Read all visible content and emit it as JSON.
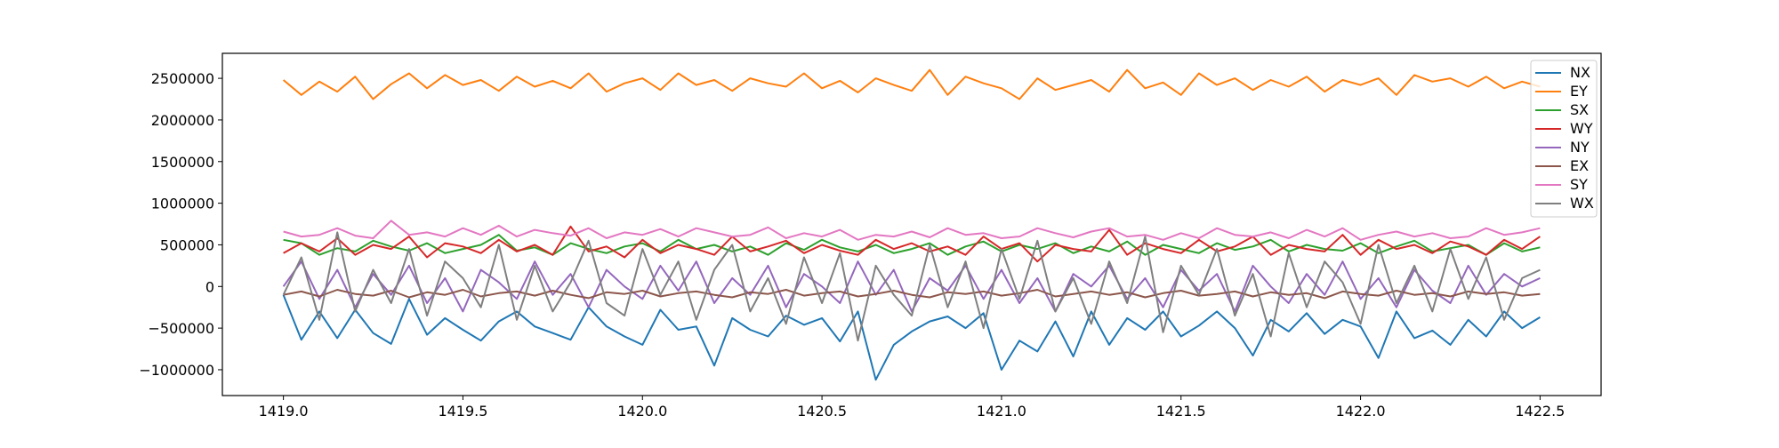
{
  "chart_data": {
    "type": "line",
    "title": "",
    "xlabel": "",
    "ylabel": "",
    "xlim": [
      1418.83,
      1422.67
    ],
    "ylim": [
      -1310000,
      2800000
    ],
    "x_start": 1419.0,
    "x_step": 0.05,
    "xticks": [
      "1419.0",
      "1419.5",
      "1420.0",
      "1420.5",
      "1421.0",
      "1421.5",
      "1422.0",
      "1422.5"
    ],
    "xtick_values": [
      1419.0,
      1419.5,
      1420.0,
      1420.5,
      1421.0,
      1421.5,
      1422.0,
      1422.5
    ],
    "yticks": [
      "−1000000",
      "−500000",
      "0",
      "500000",
      "1000000",
      "1500000",
      "2000000",
      "2500000"
    ],
    "ytick_values": [
      -1000000,
      -500000,
      0,
      500000,
      1000000,
      1500000,
      2000000,
      2500000
    ],
    "grid": false,
    "legend_position": "top-right",
    "series": [
      {
        "name": "NX",
        "color": "#1f77b4",
        "values": [
          -100000,
          -640000,
          -300000,
          -620000,
          -280000,
          -560000,
          -690000,
          -150000,
          -580000,
          -380000,
          -520000,
          -650000,
          -420000,
          -300000,
          -480000,
          -560000,
          -640000,
          -250000,
          -480000,
          -600000,
          -700000,
          -280000,
          -520000,
          -480000,
          -950000,
          -380000,
          -520000,
          -600000,
          -350000,
          -460000,
          -380000,
          -660000,
          -300000,
          -1120000,
          -700000,
          -540000,
          -420000,
          -360000,
          -500000,
          -320000,
          -1000000,
          -650000,
          -780000,
          -420000,
          -840000,
          -300000,
          -700000,
          -380000,
          -520000,
          -300000,
          -600000,
          -470000,
          -300000,
          -500000,
          -830000,
          -400000,
          -540000,
          -320000,
          -570000,
          -400000,
          -480000,
          -860000,
          -300000,
          -620000,
          -530000,
          -700000,
          -400000,
          -600000,
          -300000,
          -500000,
          -370000
        ]
      },
      {
        "name": "EY",
        "color": "#ff7f0e",
        "values": [
          2480000,
          2300000,
          2460000,
          2340000,
          2520000,
          2250000,
          2430000,
          2560000,
          2380000,
          2540000,
          2420000,
          2480000,
          2350000,
          2520000,
          2400000,
          2470000,
          2380000,
          2560000,
          2340000,
          2440000,
          2500000,
          2360000,
          2560000,
          2420000,
          2480000,
          2350000,
          2500000,
          2440000,
          2400000,
          2560000,
          2380000,
          2470000,
          2330000,
          2500000,
          2420000,
          2350000,
          2600000,
          2300000,
          2520000,
          2440000,
          2380000,
          2250000,
          2500000,
          2360000,
          2420000,
          2480000,
          2340000,
          2600000,
          2380000,
          2450000,
          2300000,
          2560000,
          2420000,
          2500000,
          2360000,
          2480000,
          2400000,
          2520000,
          2340000,
          2480000,
          2420000,
          2500000,
          2300000,
          2540000,
          2460000,
          2500000,
          2400000,
          2520000,
          2380000,
          2460000,
          2400000
        ]
      },
      {
        "name": "SX",
        "color": "#2ca02c",
        "values": [
          560000,
          520000,
          380000,
          460000,
          420000,
          550000,
          480000,
          430000,
          520000,
          400000,
          450000,
          500000,
          620000,
          430000,
          470000,
          380000,
          520000,
          450000,
          400000,
          480000,
          520000,
          420000,
          560000,
          450000,
          500000,
          420000,
          480000,
          380000,
          520000,
          440000,
          560000,
          470000,
          420000,
          500000,
          400000,
          450000,
          520000,
          380000,
          480000,
          540000,
          420000,
          500000,
          450000,
          520000,
          400000,
          480000,
          420000,
          540000,
          380000,
          500000,
          450000,
          400000,
          520000,
          440000,
          480000,
          560000,
          420000,
          500000,
          450000,
          430000,
          520000,
          400000,
          480000,
          550000,
          420000,
          460000,
          500000,
          380000,
          520000,
          420000,
          470000
        ]
      },
      {
        "name": "WY",
        "color": "#d62728",
        "values": [
          400000,
          520000,
          420000,
          580000,
          380000,
          500000,
          450000,
          600000,
          350000,
          520000,
          480000,
          400000,
          560000,
          420000,
          500000,
          380000,
          720000,
          420000,
          480000,
          350000,
          560000,
          400000,
          500000,
          450000,
          380000,
          600000,
          420000,
          480000,
          550000,
          400000,
          500000,
          430000,
          380000,
          560000,
          450000,
          520000,
          420000,
          480000,
          380000,
          600000,
          450000,
          520000,
          300000,
          500000,
          450000,
          420000,
          680000,
          380000,
          520000,
          450000,
          400000,
          560000,
          420000,
          480000,
          600000,
          380000,
          500000,
          450000,
          420000,
          620000,
          380000,
          560000,
          450000,
          500000,
          400000,
          540000,
          480000,
          380000,
          560000,
          450000,
          600000
        ]
      },
      {
        "name": "NY",
        "color": "#9467bd",
        "values": [
          0,
          300000,
          -150000,
          200000,
          -250000,
          150000,
          -100000,
          250000,
          -200000,
          100000,
          -300000,
          200000,
          50000,
          -150000,
          300000,
          -100000,
          150000,
          -250000,
          200000,
          0,
          -150000,
          250000,
          -50000,
          300000,
          -200000,
          100000,
          -100000,
          250000,
          -250000,
          150000,
          0,
          -200000,
          300000,
          -100000,
          200000,
          -300000,
          100000,
          -50000,
          250000,
          -150000,
          200000,
          -200000,
          100000,
          -300000,
          150000,
          0,
          250000,
          -150000,
          100000,
          -250000,
          200000,
          -50000,
          150000,
          -300000,
          250000,
          0,
          -200000,
          150000,
          -100000,
          300000,
          -150000,
          100000,
          -250000,
          200000,
          -50000,
          -200000,
          250000,
          -100000,
          150000,
          0,
          100000
        ]
      },
      {
        "name": "EX",
        "color": "#8c564b",
        "values": [
          -100000,
          -60000,
          -120000,
          -40000,
          -90000,
          -110000,
          -50000,
          -130000,
          -70000,
          -100000,
          -40000,
          -120000,
          -80000,
          -60000,
          -110000,
          -50000,
          -100000,
          -140000,
          -70000,
          -90000,
          -50000,
          -120000,
          -80000,
          -60000,
          -100000,
          -130000,
          -70000,
          -90000,
          -40000,
          -110000,
          -80000,
          -60000,
          -120000,
          -90000,
          -50000,
          -100000,
          -130000,
          -70000,
          -90000,
          -60000,
          -110000,
          -80000,
          -40000,
          -120000,
          -90000,
          -60000,
          -100000,
          -70000,
          -130000,
          -80000,
          -50000,
          -110000,
          -90000,
          -60000,
          -120000,
          -70000,
          -100000,
          -80000,
          -140000,
          -60000,
          -90000,
          -110000,
          -50000,
          -100000,
          -80000,
          -120000,
          -60000,
          -90000,
          -70000,
          -110000,
          -90000
        ]
      },
      {
        "name": "SY",
        "color": "#e377c2",
        "values": [
          660000,
          600000,
          620000,
          700000,
          610000,
          580000,
          790000,
          620000,
          650000,
          600000,
          700000,
          620000,
          730000,
          600000,
          680000,
          640000,
          610000,
          700000,
          580000,
          650000,
          620000,
          690000,
          600000,
          700000,
          650000,
          600000,
          620000,
          710000,
          580000,
          640000,
          600000,
          680000,
          560000,
          620000,
          600000,
          660000,
          590000,
          700000,
          620000,
          640000,
          580000,
          600000,
          700000,
          640000,
          590000,
          660000,
          700000,
          600000,
          620000,
          560000,
          640000,
          580000,
          700000,
          620000,
          600000,
          650000,
          580000,
          680000,
          600000,
          700000,
          560000,
          620000,
          660000,
          600000,
          640000,
          580000,
          600000,
          700000,
          620000,
          650000,
          700000
        ]
      },
      {
        "name": "WX",
        "color": "#7f7f7f",
        "values": [
          -100000,
          350000,
          -400000,
          650000,
          -300000,
          200000,
          -200000,
          450000,
          -350000,
          300000,
          100000,
          -250000,
          500000,
          -400000,
          250000,
          -300000,
          50000,
          550000,
          -200000,
          -350000,
          450000,
          -100000,
          300000,
          -400000,
          200000,
          500000,
          -300000,
          100000,
          -450000,
          350000,
          -200000,
          400000,
          -650000,
          250000,
          -100000,
          -350000,
          500000,
          -250000,
          300000,
          -500000,
          450000,
          -150000,
          550000,
          -300000,
          100000,
          -450000,
          300000,
          -200000,
          600000,
          -550000,
          250000,
          -100000,
          450000,
          -350000,
          150000,
          -600000,
          400000,
          -250000,
          300000,
          50000,
          -450000,
          500000,
          -200000,
          250000,
          -300000,
          450000,
          -150000,
          350000,
          -400000,
          100000,
          200000
        ]
      }
    ]
  }
}
